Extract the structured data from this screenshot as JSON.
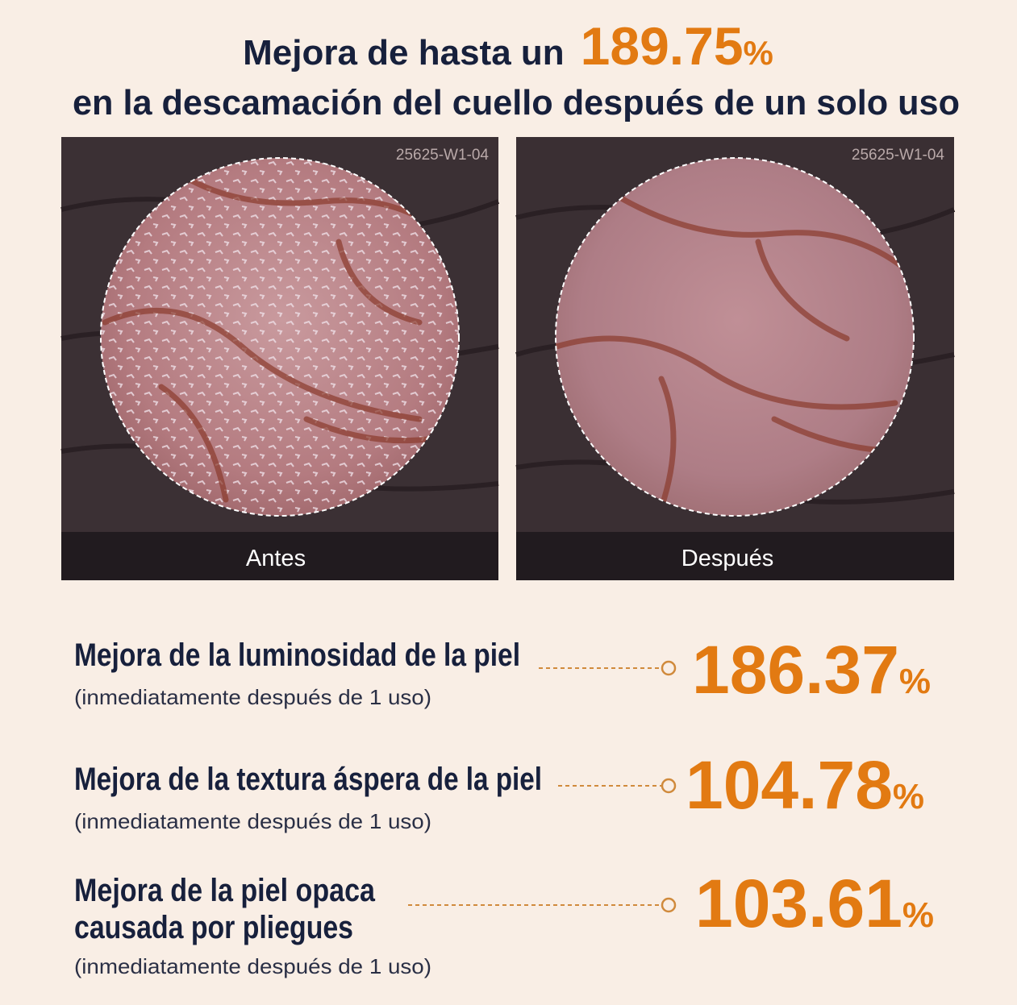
{
  "header": {
    "line1": "Mejora de hasta un",
    "highlight_value": 189.75,
    "highlight_unit": "%",
    "line2": "en la descamación del cuello después de un solo uso"
  },
  "photos": [
    {
      "code": "25625-W1-04",
      "label": "Antes"
    },
    {
      "code": "25625-W1-04",
      "label": "Después"
    }
  ],
  "stats": [
    {
      "title_lines": [
        "Mejora de la luminosidad de la piel"
      ],
      "note": "(inmediatamente después de 1 uso)",
      "value": 186.37,
      "unit": "%"
    },
    {
      "title_lines": [
        "Mejora de la textura áspera de la piel"
      ],
      "note": "(inmediatamente después de 1 uso)",
      "value": 104.78,
      "unit": "%"
    },
    {
      "title_lines": [
        "Mejora de la piel opaca",
        "causada por pliegues"
      ],
      "note": "(inmediatamente después de 1 uso)",
      "value": 103.61,
      "unit": "%"
    }
  ]
}
